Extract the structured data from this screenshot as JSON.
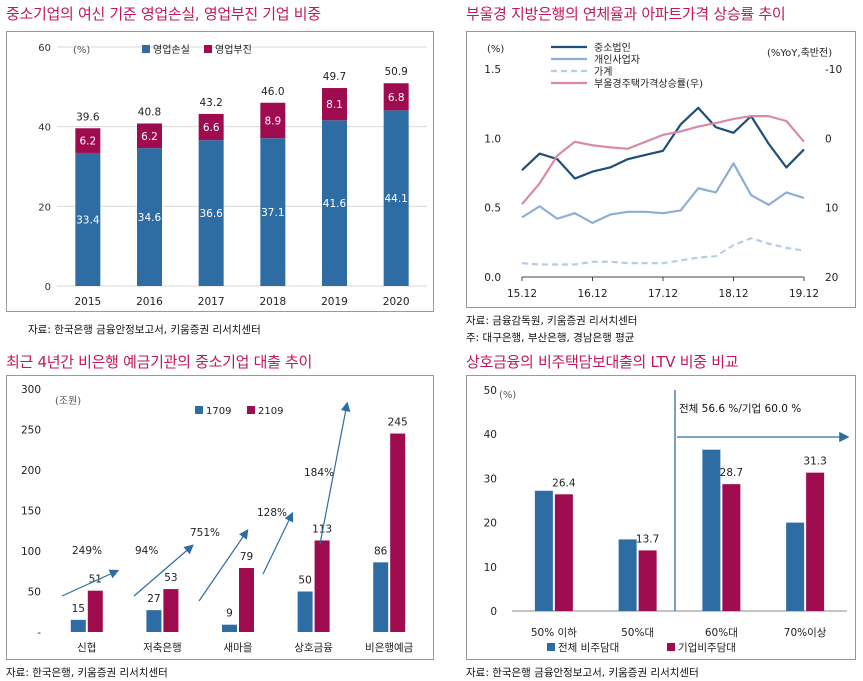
{
  "chart_data": [
    {
      "type": "bar",
      "stacked": true,
      "title": "중소기업의 여신 기준 영업손실, 영업부진 기업 비중",
      "unit": "(%)",
      "categories": [
        "2015",
        "2016",
        "2017",
        "2018",
        "2019",
        "2020"
      ],
      "series": [
        {
          "name": "영업손실",
          "values": [
            33.4,
            34.6,
            36.6,
            37.1,
            41.6,
            44.1
          ],
          "color": "#2E6DA4"
        },
        {
          "name": "영업부진",
          "values": [
            6.2,
            6.2,
            6.6,
            8.9,
            8.1,
            6.8
          ],
          "color": "#9E0B4F"
        }
      ],
      "totals": [
        "39.6",
        "40.8",
        "43.2",
        "46.0",
        "49.7",
        "50.9"
      ],
      "ylim": [
        0,
        60
      ],
      "yticks": [
        "0",
        "20",
        "40",
        "60"
      ],
      "grid": true,
      "legend": "top",
      "source": "자료: 한국은행 금융안정보고서, 키움증권 리서치센터"
    },
    {
      "type": "line",
      "title": "부울경 지방은행의 연체율과 아파트가격 상승률 추이",
      "left_unit": "(%)",
      "right_unit": "(%YoY,축반전)",
      "xticks": [
        "15.12",
        "16.12",
        "17.12",
        "18.12",
        "19.12"
      ],
      "ylim": [
        0,
        1.5
      ],
      "yticks": [
        "0.0",
        "0.5",
        "1.0",
        "1.5"
      ],
      "y2lim": [
        -10,
        20
      ],
      "y2_inverted": true,
      "y2ticks": [
        "-10",
        "0",
        "10",
        "20"
      ],
      "x": [
        "15.12",
        "16.03",
        "16.06",
        "16.09",
        "16.12",
        "17.03",
        "17.06",
        "17.09",
        "17.12",
        "18.03",
        "18.06",
        "18.09",
        "18.12",
        "19.03",
        "19.06",
        "19.09",
        "19.12"
      ],
      "series": [
        {
          "name": "중소법인",
          "axis": "left",
          "color": "#1F4E79",
          "dash": false,
          "values": [
            0.77,
            0.89,
            0.85,
            0.71,
            0.76,
            0.79,
            0.85,
            0.88,
            0.91,
            1.1,
            1.22,
            1.08,
            1.04,
            1.16,
            0.96,
            0.79,
            0.92
          ]
        },
        {
          "name": "개인사업자",
          "axis": "left",
          "color": "#8FAED3",
          "dash": false,
          "values": [
            0.43,
            0.51,
            0.42,
            0.46,
            0.39,
            0.45,
            0.47,
            0.47,
            0.46,
            0.48,
            0.64,
            0.61,
            0.82,
            0.59,
            0.52,
            0.61,
            0.57
          ]
        },
        {
          "name": "가계",
          "axis": "left",
          "color": "#B8CCE4",
          "dash": true,
          "values": [
            0.1,
            0.09,
            0.09,
            0.09,
            0.11,
            0.11,
            0.1,
            0.1,
            0.1,
            0.12,
            0.14,
            0.15,
            0.23,
            0.28,
            0.24,
            0.21,
            0.19
          ]
        },
        {
          "name": "부울경주택가격상승률(우)",
          "axis": "right",
          "color": "#D98BA3",
          "dash": false,
          "values": [
            9.5,
            6.5,
            2.5,
            0.5,
            1.0,
            1.3,
            1.5,
            0.5,
            -0.5,
            -1.0,
            -1.7,
            -2.2,
            -2.8,
            -3.2,
            -3.2,
            -2.5,
            0.5
          ]
        }
      ],
      "legend": "top-left",
      "source": "자료: 금융감독원, 키움증권 리서치센터",
      "note": "주: 대구은행, 부산은행, 경남은행 평균"
    },
    {
      "type": "bar",
      "title": "최근 4년간 비은행 예금기관의 중소기업 대출 추이",
      "unit": "(조원)",
      "categories": [
        "신협",
        "저축은행",
        "새마을",
        "상호금융",
        "비은행예금"
      ],
      "series": [
        {
          "name": "1709",
          "values": [
            15,
            27,
            9,
            50,
            86
          ],
          "color": "#2E6DA4"
        },
        {
          "name": "2109",
          "values": [
            51,
            53,
            79,
            113,
            245
          ],
          "color": "#9E0B4F"
        }
      ],
      "growth": [
        "249%",
        "94%",
        "751%",
        "128%",
        "184%"
      ],
      "ylim": [
        0,
        300
      ],
      "yticks": [
        "-",
        "50",
        "100",
        "150",
        "200",
        "250",
        "300"
      ],
      "grid": false,
      "legend": "top",
      "source": "자료: 한국은행, 키움증권 리서치센터"
    },
    {
      "type": "bar",
      "title": "상호금융의 비주택담보대출의 LTV 비중 비교",
      "unit": "(%)",
      "categories": [
        "50% 이하",
        "50%대",
        "60%대",
        "70%이상"
      ],
      "series": [
        {
          "name": "전체 비주담대",
          "values": [
            27.2,
            16.2,
            36.5,
            20.0
          ],
          "color": "#2E6DA4"
        },
        {
          "name": "기업비주담대",
          "values": [
            26.4,
            13.7,
            28.7,
            31.3
          ],
          "color": "#9E0B4F"
        }
      ],
      "data_labels": [
        "26.4",
        "13.7",
        "28.7",
        "31.3"
      ],
      "annotation": "전체 56.6 %/기업 60.0 %",
      "ylim": [
        0,
        50
      ],
      "yticks": [
        "0",
        "10",
        "20",
        "30",
        "40",
        "50"
      ],
      "grid": false,
      "legend": "bottom",
      "source": "자료: 한국은행 금융안정보고서, 키움증권 리서치센터"
    }
  ]
}
